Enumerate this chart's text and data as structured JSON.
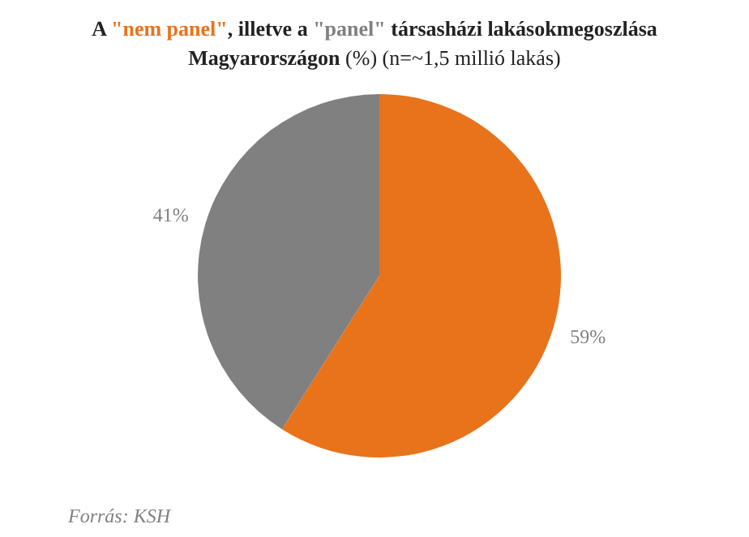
{
  "chart_data": {
    "type": "pie",
    "title": "A \"nem panel\", illetve a \"panel\" társasházi lakásokmegoszlása Magyarországon",
    "subtitle": "(%) (n=~1,5 millió lakás)",
    "categories": [
      null,
      null
    ],
    "values": [
      59,
      41
    ],
    "value_labels": [
      "59%",
      "41%"
    ],
    "colors": [
      "#e8731a",
      "#808080"
    ],
    "annotations": [
      "Forrás: KSH"
    ]
  }
}
